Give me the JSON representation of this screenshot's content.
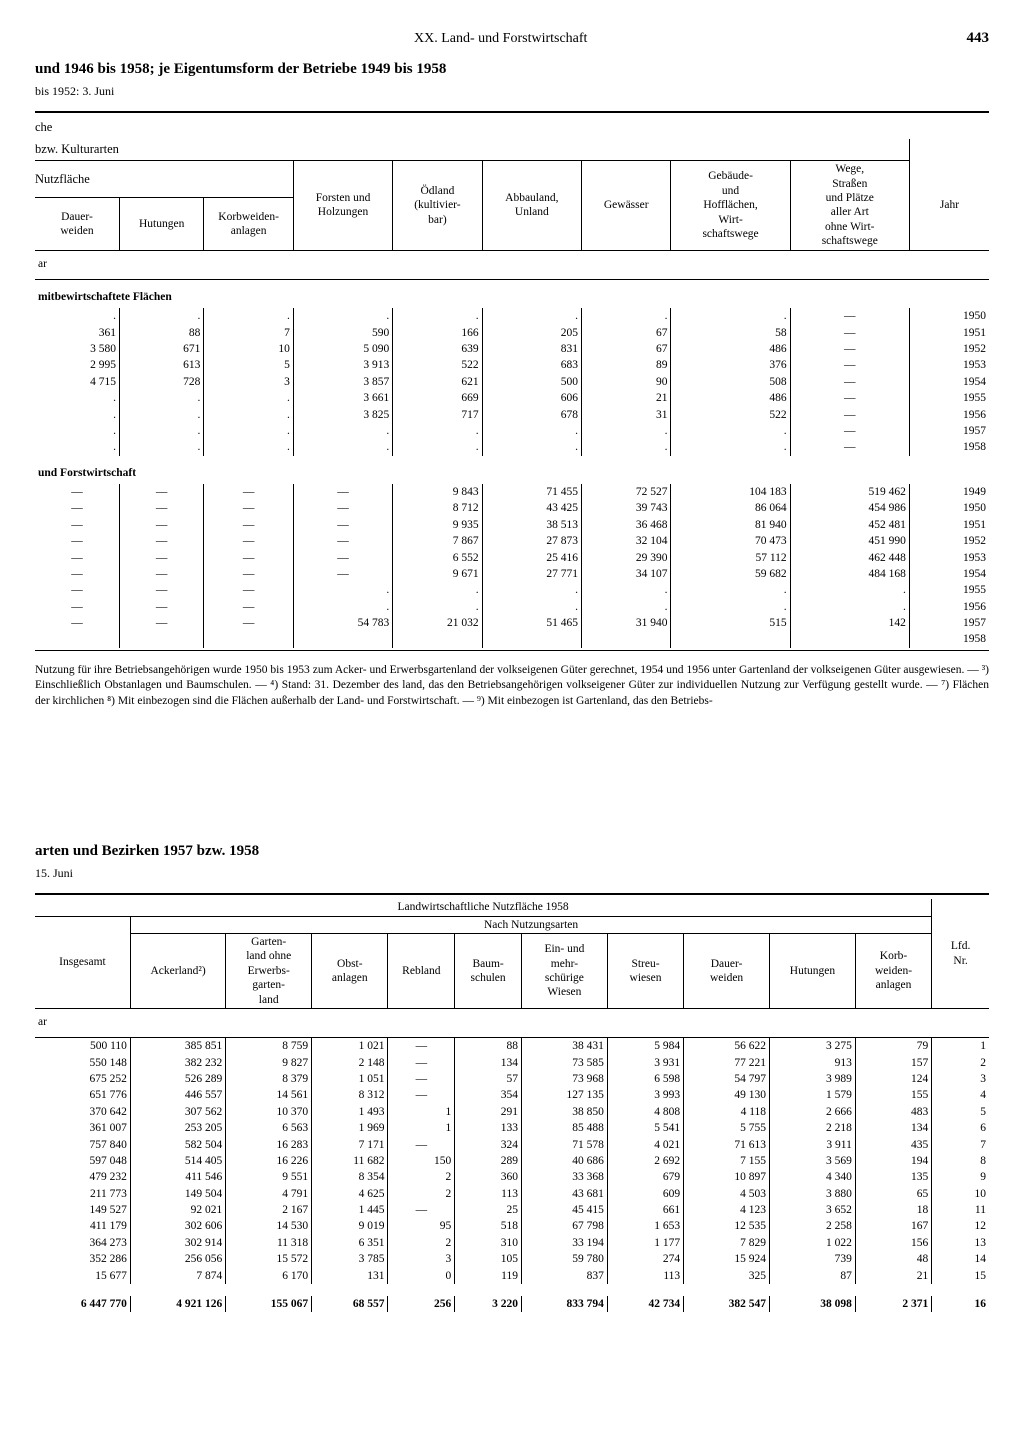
{
  "header": {
    "section": "XX. Land- und Forstwirtschaft",
    "page": "443"
  },
  "table1": {
    "title": "und 1946 bis 1958; je Eigentumsform der Betriebe 1949 bis 1958",
    "subtitle": "bis 1952: 3. Juni",
    "group_labels": {
      "che": "che",
      "kultur": "bzw. Kulturarten",
      "nutz": "Nutzfläche",
      "unit": "ar"
    },
    "columns": [
      "Dauer-\nweiden",
      "Hutungen",
      "Korbweiden-\nanlagen",
      "Forsten und\nHolzungen",
      "Ödland\n(kultivier-\nbar)",
      "Abbauland,\nUnland",
      "Gewässer",
      "Gebäude-\nund\nHofflächen,\nWirt-\nschaftswege",
      "Wege,\nStraßen\nund Plätze\naller Art\nohne Wirt-\nschaftswege",
      "Jahr"
    ],
    "section_a": {
      "label": "mitbewirtschaftete Flächen",
      "rows": [
        [
          ".",
          ".",
          ".",
          ".",
          ".",
          ".",
          ".",
          ".",
          "—",
          "1950"
        ],
        [
          "361",
          "88",
          "7",
          "590",
          "166",
          "205",
          "67",
          "58",
          "—",
          "1951"
        ],
        [
          "3 580",
          "671",
          "10",
          "5 090",
          "639",
          "831",
          "67",
          "486",
          "—",
          "1952"
        ],
        [
          "2 995",
          "613",
          "5",
          "3 913",
          "522",
          "683",
          "89",
          "376",
          "—",
          "1953"
        ],
        [
          "4 715",
          "728",
          "3",
          "3 857",
          "621",
          "500",
          "90",
          "508",
          "—",
          "1954"
        ],
        [
          ".",
          ".",
          ".",
          "3 661",
          "669",
          "606",
          "21",
          "486",
          "—",
          "1955"
        ],
        [
          ".",
          ".",
          ".",
          "3 825",
          "717",
          "678",
          "31",
          "522",
          "—",
          "1956"
        ],
        [
          ".",
          ".",
          ".",
          ".",
          ".",
          ".",
          ".",
          ".",
          "—",
          "1957"
        ],
        [
          ".",
          ".",
          ".",
          ".",
          ".",
          ".",
          ".",
          ".",
          "—",
          "1958"
        ]
      ]
    },
    "section_b": {
      "label": "und Forstwirtschaft",
      "rows": [
        [
          "—",
          "—",
          "—",
          "—",
          "9 843",
          "71 455",
          "72 527",
          "104 183",
          "519 462",
          "1949"
        ],
        [
          "—",
          "—",
          "—",
          "—",
          "8 712",
          "43 425",
          "39 743",
          "86 064",
          "454 986",
          "1950"
        ],
        [
          "—",
          "—",
          "—",
          "—",
          "9 935",
          "38 513",
          "36 468",
          "81 940",
          "452 481",
          "1951"
        ],
        [
          "—",
          "—",
          "—",
          "—",
          "7 867",
          "27 873",
          "32 104",
          "70 473",
          "451 990",
          "1952"
        ],
        [
          "—",
          "—",
          "—",
          "—",
          "6 552",
          "25 416",
          "29 390",
          "57 112",
          "462 448",
          "1953"
        ],
        [
          "—",
          "—",
          "—",
          "—",
          "9 671",
          "27 771",
          "34 107",
          "59 682",
          "484 168",
          "1954"
        ],
        [
          "—",
          "—",
          "—",
          ".",
          ".",
          ".",
          ".",
          ".",
          ".",
          "1955"
        ],
        [
          "—",
          "—",
          "—",
          ".",
          ".",
          ".",
          ".",
          ".",
          ".",
          "1956"
        ],
        [
          "—",
          "—",
          "—",
          "54 783",
          "21 032",
          "51 465",
          "31 940",
          "515",
          "142",
          "1957"
        ],
        [
          "",
          "",
          "",
          "",
          "",
          "",
          "",
          "",
          "",
          "1958"
        ]
      ]
    },
    "footnote": "Nutzung für ihre Betriebsangehörigen wurde 1950 bis 1953 zum Acker- und Erwerbsgartenland der volkseigenen Güter gerechnet, 1954 und 1956 unter Gartenland der volkseigenen Güter ausgewiesen. — ³) Einschließlich Obstanlagen und Baumschulen. — ⁴) Stand: 31. Dezember des land, das den Betriebsangehörigen volkseigener Güter zur individuellen Nutzung zur Verfügung gestellt wurde. — ⁷) Flächen der kirchlichen ⁸) Mit einbezogen sind die Flächen außerhalb der Land- und Forstwirtschaft. — ⁹) Mit einbezogen ist Gartenland, das den Betriebs-"
  },
  "table2": {
    "title": "arten und Bezirken 1957 bzw. 1958",
    "subtitle": "15. Juni",
    "group_labels": {
      "top": "Landwirtschaftliche Nutzfläche 1958",
      "sub": "Nach Nutzungsarten",
      "unit": "ar"
    },
    "columns": [
      "Insgesamt",
      "Ackerland²)",
      "Garten-\nland ohne\nErwerbs-\ngarten-\nland",
      "Obst-\nanlagen",
      "Rebland",
      "Baum-\nschulen",
      "Ein- und\nmehr-\nschürige\nWiesen",
      "Streu-\nwiesen",
      "Dauer-\nweiden",
      "Hutungen",
      "Korb-\nweiden-\nanlagen",
      "Lfd.\nNr."
    ],
    "rows": [
      [
        "500 110",
        "385 851",
        "8 759",
        "1 021",
        "—",
        "88",
        "38 431",
        "5 984",
        "56 622",
        "3 275",
        "79",
        "1"
      ],
      [
        "550 148",
        "382 232",
        "9 827",
        "2 148",
        "—",
        "134",
        "73 585",
        "3 931",
        "77 221",
        "913",
        "157",
        "2"
      ],
      [
        "675 252",
        "526 289",
        "8 379",
        "1 051",
        "—",
        "57",
        "73 968",
        "6 598",
        "54 797",
        "3 989",
        "124",
        "3"
      ],
      [
        "651 776",
        "446 557",
        "14 561",
        "8 312",
        "—",
        "354",
        "127 135",
        "3 993",
        "49 130",
        "1 579",
        "155",
        "4"
      ],
      [
        "370 642",
        "307 562",
        "10 370",
        "1 493",
        "1",
        "291",
        "38 850",
        "4 808",
        "4 118",
        "2 666",
        "483",
        "5"
      ],
      [
        "361 007",
        "253 205",
        "6 563",
        "1 969",
        "1",
        "133",
        "85 488",
        "5 541",
        "5 755",
        "2 218",
        "134",
        "6"
      ],
      [
        "757 840",
        "582 504",
        "16 283",
        "7 171",
        "—",
        "324",
        "71 578",
        "4 021",
        "71 613",
        "3 911",
        "435",
        "7"
      ],
      [
        "597 048",
        "514 405",
        "16 226",
        "11 682",
        "150",
        "289",
        "40 686",
        "2 692",
        "7 155",
        "3 569",
        "194",
        "8"
      ],
      [
        "479 232",
        "411 546",
        "9 551",
        "8 354",
        "2",
        "360",
        "33 368",
        "679",
        "10 897",
        "4 340",
        "135",
        "9"
      ],
      [
        "211 773",
        "149 504",
        "4 791",
        "4 625",
        "2",
        "113",
        "43 681",
        "609",
        "4 503",
        "3 880",
        "65",
        "10"
      ],
      [
        "149 527",
        "92 021",
        "2 167",
        "1 445",
        "—",
        "25",
        "45 415",
        "661",
        "4 123",
        "3 652",
        "18",
        "11"
      ],
      [
        "411 179",
        "302 606",
        "14 530",
        "9 019",
        "95",
        "518",
        "67 798",
        "1 653",
        "12 535",
        "2 258",
        "167",
        "12"
      ],
      [
        "364 273",
        "302 914",
        "11 318",
        "6 351",
        "2",
        "310",
        "33 194",
        "1 177",
        "7 829",
        "1 022",
        "156",
        "13"
      ],
      [
        "352 286",
        "256 056",
        "15 572",
        "3 785",
        "3",
        "105",
        "59 780",
        "274",
        "15 924",
        "739",
        "48",
        "14"
      ],
      [
        "15 677",
        "7 874",
        "6 170",
        "131",
        "0",
        "119",
        "837",
        "113",
        "325",
        "87",
        "21",
        "15"
      ]
    ],
    "total": [
      "6 447 770",
      "4 921 126",
      "155 067",
      "68 557",
      "256",
      "3 220",
      "833 794",
      "42 734",
      "382 547",
      "38 098",
      "2 371",
      "16"
    ]
  }
}
